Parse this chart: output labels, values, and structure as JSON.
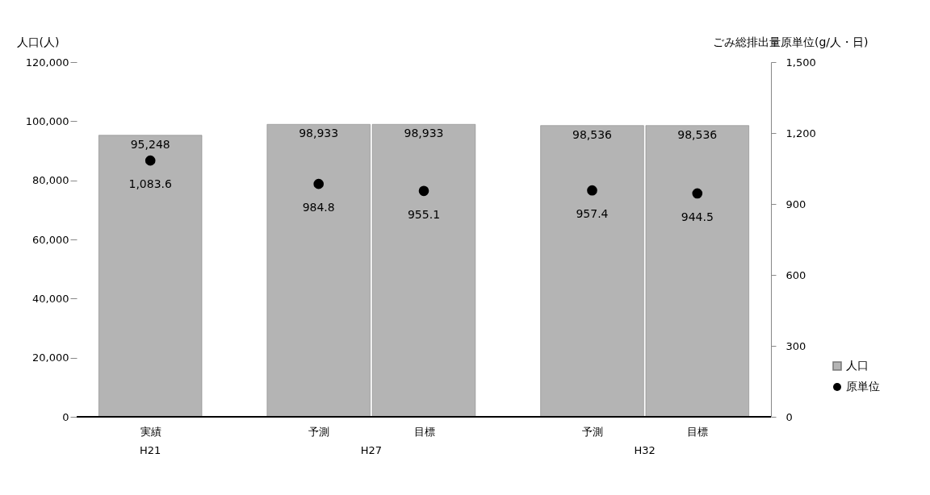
{
  "chart_data": {
    "type": "bar",
    "categories": [
      "実績",
      "予測",
      "目標",
      "予測",
      "目標"
    ],
    "series": [
      {
        "name": "人口",
        "color": "#b4b4b4",
        "values": [
          95248,
          98933,
          98933,
          98536,
          98536
        ],
        "value_labels": [
          "95,248",
          "98,933",
          "98,933",
          "98,536",
          "98,536"
        ]
      },
      {
        "name": "原単位",
        "type": "scatter",
        "axis": "y2",
        "color": "#000000",
        "values": [
          1083.6,
          984.8,
          955.1,
          957.4,
          944.5
        ],
        "value_labels": [
          "1,083.6",
          "984.8",
          "955.1",
          "957.4",
          "944.5"
        ]
      }
    ],
    "annotations": [
      "H21",
      "H27",
      "H32"
    ],
    "ylabel": "人口(人)",
    "y2label": "ごみ総排出量原単位(g/人・日)",
    "ylim": [
      0,
      120000
    ],
    "yticks": [
      0,
      {
        "value": 20000,
        "label": "20,000"
      },
      {
        "value": 40000,
        "label": "40,000"
      },
      {
        "value": 60000,
        "label": "60,000"
      },
      {
        "value": 80000,
        "label": "80,000"
      },
      {
        "value": 100000,
        "label": "100,000"
      },
      {
        "value": 120000,
        "label": "120,000"
      }
    ],
    "y2lim": [
      0,
      1500
    ],
    "y2ticks": [
      0,
      300,
      600,
      900,
      {
        "value": 1200,
        "label": "1,200"
      },
      {
        "value": 1500,
        "label": "1,500"
      }
    ],
    "marker": "circle",
    "legend": "right",
    "grid": false
  }
}
